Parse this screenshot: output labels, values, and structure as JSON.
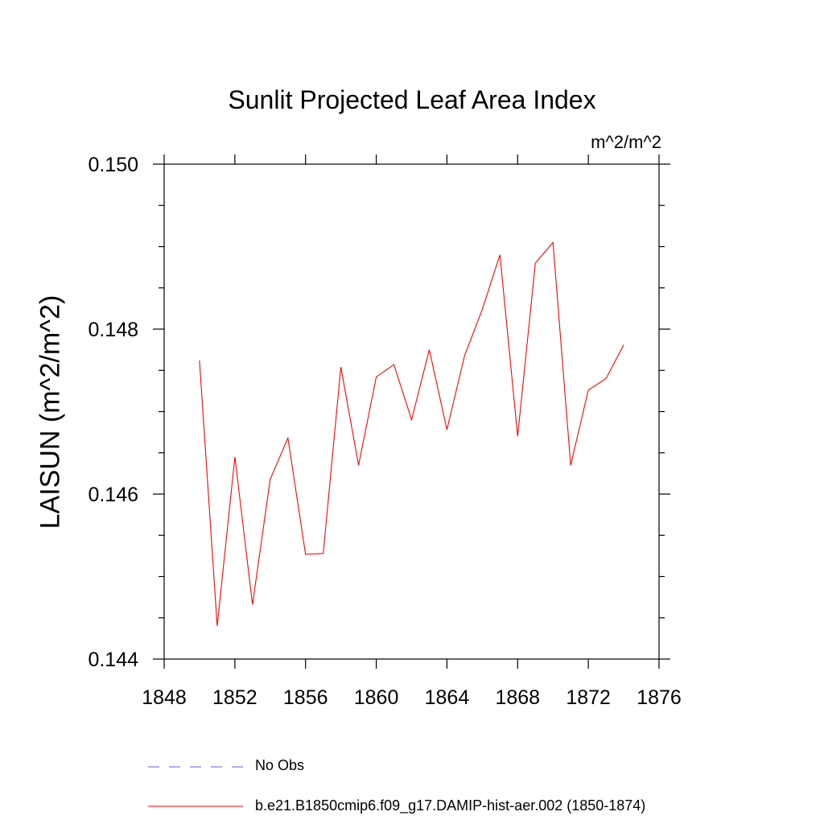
{
  "chart_data": {
    "type": "line",
    "title": "Sunlit Projected Leaf Area Index",
    "units": "m^2/m^2",
    "ylabel": "LAISUN  (m^2/m^2)",
    "xlabel": "",
    "xlim": [
      1848,
      1876
    ],
    "ylim": [
      0.144,
      0.15
    ],
    "xticks": [
      "1848",
      "1852",
      "1856",
      "1860",
      "1864",
      "1868",
      "1872",
      "1876"
    ],
    "yticks": [
      "0.144",
      "0.146",
      "0.148",
      "0.150"
    ],
    "grid": false,
    "legend_position": "bottom",
    "series": [
      {
        "name": "No Obs",
        "color": "#6a5acd",
        "style": "dashed",
        "x": [],
        "y": []
      },
      {
        "name": "b.e21.B1850cmip6.f09_g17.DAMIP-hist-aer.002 (1850-1874)",
        "color": "#ff0000",
        "style": "solid",
        "x": [
          1850,
          1851,
          1852,
          1853,
          1854,
          1855,
          1856,
          1857,
          1858,
          1859,
          1860,
          1861,
          1862,
          1863,
          1864,
          1865,
          1866,
          1867,
          1868,
          1869,
          1870,
          1871,
          1872,
          1873,
          1874
        ],
        "y": [
          0.14762,
          0.1444,
          0.14645,
          0.14466,
          0.14618,
          0.14668,
          0.14527,
          0.14528,
          0.14754,
          0.14635,
          0.14742,
          0.14757,
          0.1469,
          0.14775,
          0.14678,
          0.14768,
          0.14824,
          0.1489,
          0.1467,
          0.1488,
          0.14905,
          0.14635,
          0.14726,
          0.1474,
          0.14781
        ]
      }
    ]
  }
}
